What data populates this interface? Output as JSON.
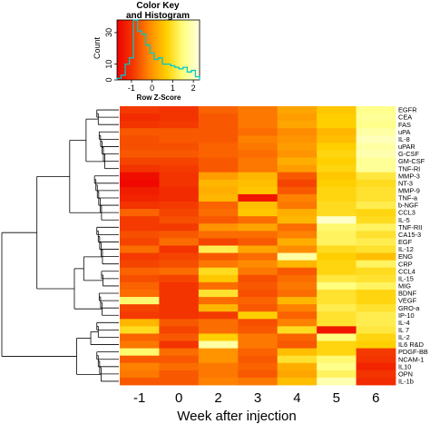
{
  "chart_data": {
    "type": "heatmap",
    "title": "",
    "xlabel": "Week after injection",
    "columns": [
      "-1",
      "0",
      "2",
      "3",
      "4",
      "5",
      "6"
    ],
    "rows": [
      "EGFR",
      "CEA",
      "FAS",
      "uPA",
      "IL-8",
      "uPAR",
      "G-CSF",
      "GM-CSF",
      "TNF-RI",
      "MMP-3",
      "NT-3",
      "MMP-9",
      "TNF-a",
      "b-NGF",
      "CCL3",
      "IL-5",
      "TNF-RII",
      "CA15-3",
      "EGF",
      "IL-12",
      "ENG",
      "CRP",
      "CCL4",
      "IL-15",
      "MIG",
      "BDNF",
      "VEGF",
      "GRO-a",
      "IP-10",
      "IL-4",
      "IL 7",
      "IL-2",
      "IL6 R&D",
      "PDGF-BB",
      "NCAM-1",
      "IL10",
      "OPN",
      "IL-1b"
    ],
    "values": [
      [
        -0.9,
        -1.0,
        -0.5,
        -0.3,
        0.2,
        0.6,
        1.6
      ],
      [
        -1.1,
        -1.0,
        -0.6,
        -0.3,
        0.1,
        0.7,
        1.7
      ],
      [
        -1.0,
        -0.9,
        -0.6,
        -0.3,
        0.2,
        0.7,
        1.6
      ],
      [
        -0.6,
        -0.6,
        -0.6,
        -0.4,
        -0.1,
        0.4,
        1.8
      ],
      [
        -0.7,
        -0.6,
        -0.6,
        -0.2,
        0.0,
        0.5,
        2.0
      ],
      [
        -0.7,
        -0.7,
        -0.5,
        -0.3,
        0.1,
        0.7,
        1.8
      ],
      [
        -0.6,
        -0.6,
        -0.5,
        -0.4,
        0.0,
        0.8,
        1.9
      ],
      [
        -0.8,
        -0.8,
        -0.6,
        -0.3,
        0.3,
        0.7,
        1.7
      ],
      [
        -1.0,
        -0.9,
        -0.6,
        -0.3,
        0.1,
        0.8,
        1.7
      ],
      [
        -1.5,
        -1.0,
        0.1,
        0.4,
        -0.6,
        0.6,
        1.1
      ],
      [
        -1.6,
        -1.0,
        0.4,
        0.5,
        -0.8,
        0.7,
        0.9
      ],
      [
        -1.3,
        -1.1,
        0.3,
        0.6,
        -0.6,
        0.8,
        1.0
      ],
      [
        -1.2,
        -1.1,
        0.4,
        -1.4,
        -0.2,
        0.8,
        1.0
      ],
      [
        -1.0,
        -0.9,
        -0.5,
        0.5,
        -0.3,
        0.9,
        1.2
      ],
      [
        -0.5,
        -0.8,
        -0.4,
        0.6,
        0.3,
        0.9,
        0.8
      ],
      [
        -0.9,
        -0.7,
        -0.6,
        -0.4,
        0.4,
        2.1,
        0.9
      ],
      [
        -0.9,
        -0.9,
        0.0,
        0.2,
        -0.4,
        1.4,
        1.3
      ],
      [
        -0.7,
        -0.6,
        -0.4,
        -0.4,
        -0.2,
        1.3,
        1.0
      ],
      [
        -0.8,
        -0.4,
        -0.8,
        -0.6,
        0.3,
        1.3,
        1.2
      ],
      [
        -0.4,
        -1.0,
        1.2,
        0.2,
        -0.1,
        0.9,
        1.0
      ],
      [
        -0.9,
        -0.8,
        -0.6,
        -0.4,
        1.8,
        0.7,
        0.5
      ],
      [
        -0.8,
        -0.7,
        -0.3,
        -0.1,
        0.4,
        0.8,
        1.3
      ],
      [
        -0.5,
        -0.4,
        0.9,
        -0.3,
        -0.6,
        0.8,
        0.9
      ],
      [
        -0.7,
        -0.8,
        0.6,
        -0.7,
        -0.4,
        1.1,
        1.0
      ],
      [
        -0.5,
        -1.0,
        -0.4,
        -0.6,
        -0.3,
        1.5,
        1.3
      ],
      [
        -0.4,
        -1.0,
        1.0,
        -0.7,
        -0.4,
        1.0,
        0.8
      ],
      [
        1.4,
        -1.0,
        -0.4,
        -0.5,
        0.4,
        1.0,
        0.8
      ],
      [
        -0.8,
        -1.0,
        0.4,
        -0.6,
        -0.2,
        1.2,
        1.0
      ],
      [
        -0.9,
        -1.0,
        -0.9,
        0.7,
        -0.5,
        1.0,
        1.2
      ],
      [
        0.4,
        -0.6,
        -0.4,
        -0.7,
        -0.2,
        1.0,
        1.2
      ],
      [
        0.9,
        -0.8,
        -0.4,
        -0.6,
        0.9,
        -1.4,
        1.1
      ],
      [
        -0.5,
        -0.6,
        0.7,
        -0.3,
        -0.5,
        1.5,
        0.8
      ],
      [
        -0.3,
        -1.0,
        1.8,
        -0.3,
        -0.6,
        0.8,
        0.7
      ],
      [
        1.4,
        -0.4,
        0.0,
        -0.5,
        0.5,
        0.8,
        -0.9
      ],
      [
        -0.6,
        -0.6,
        0.0,
        -0.6,
        1.0,
        1.4,
        -1.0
      ],
      [
        -0.2,
        -0.4,
        -0.3,
        -0.5,
        0.3,
        1.6,
        -1.2
      ],
      [
        -0.3,
        -0.6,
        -0.3,
        -0.6,
        0.2,
        1.3,
        -1.0
      ],
      [
        -0.6,
        -0.6,
        -0.2,
        -0.3,
        0.5,
        1.9,
        -1.1
      ]
    ],
    "color_key": {
      "title_line1": "Color Key",
      "title_line2": "and Histogram",
      "ylabel": "Count",
      "xlabel": "Row Z-Score",
      "xticks": [
        "-1",
        "0",
        "1",
        "2"
      ],
      "yticks": [
        "0",
        "10",
        "30"
      ],
      "xrange": [
        -1.7,
        2.3
      ],
      "ymax": 38,
      "colors": [
        "#ee0000",
        "#f43a00",
        "#ff8c00",
        "#ffcf00",
        "#ffff80",
        "#ffffe0"
      ],
      "histogram": {
        "breaks": [
          -1.7,
          -1.5,
          -1.3,
          -1.1,
          -0.9,
          -0.7,
          -0.5,
          -0.3,
          -0.1,
          0.1,
          0.3,
          0.5,
          0.7,
          0.9,
          1.1,
          1.3,
          1.5,
          1.7,
          1.9,
          2.1,
          2.3
        ],
        "counts": [
          1,
          3,
          10,
          14,
          38,
          31,
          29,
          22,
          17,
          13,
          14,
          10,
          10,
          9,
          8,
          7,
          8,
          5,
          6,
          2
        ]
      },
      "trace_color": "#00c8c8"
    }
  }
}
